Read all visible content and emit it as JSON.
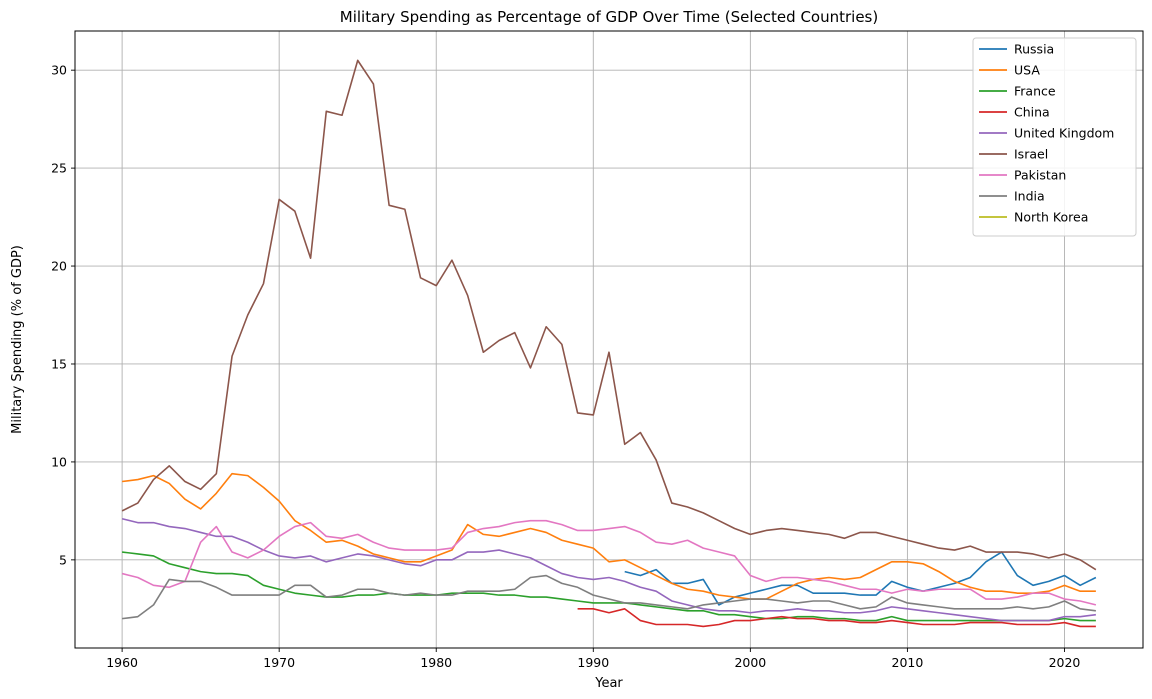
{
  "chart_data": {
    "type": "line",
    "title": "Military Spending as Percentage of GDP Over Time (Selected Countries)",
    "xlabel": "Year",
    "ylabel": "Military Spending (% of GDP)",
    "xlim": [
      1957,
      2025
    ],
    "ylim": [
      0.5,
      32
    ],
    "xticks": [
      1960,
      1970,
      1980,
      1990,
      2000,
      2010,
      2020
    ],
    "yticks": [
      5,
      10,
      15,
      20,
      25,
      30
    ],
    "grid": true,
    "legend_position": "top-right",
    "series": [
      {
        "name": "Russia",
        "color": "#1f77b4",
        "start_year": 1992,
        "values": [
          4.4,
          4.2,
          4.5,
          3.8,
          3.8,
          4.0,
          2.7,
          3.1,
          3.3,
          3.5,
          3.7,
          3.7,
          3.3,
          3.3,
          3.3,
          3.2,
          3.2,
          3.9,
          3.6,
          3.4,
          3.6,
          3.8,
          4.1,
          4.9,
          5.4,
          4.2,
          3.7,
          3.9,
          4.2,
          3.7,
          4.1
        ]
      },
      {
        "name": "USA",
        "color": "#ff7f0e",
        "start_year": 1960,
        "values": [
          9.0,
          9.1,
          9.3,
          8.9,
          8.1,
          7.6,
          8.4,
          9.4,
          9.3,
          8.7,
          8.0,
          7.0,
          6.5,
          5.9,
          6.0,
          5.7,
          5.3,
          5.1,
          4.9,
          4.9,
          5.2,
          5.5,
          6.8,
          6.3,
          6.2,
          6.4,
          6.6,
          6.4,
          6.0,
          5.8,
          5.6,
          4.9,
          5.0,
          4.6,
          4.2,
          3.8,
          3.5,
          3.4,
          3.2,
          3.1,
          3.0,
          3.0,
          3.4,
          3.8,
          4.0,
          4.1,
          4.0,
          4.1,
          4.5,
          4.9,
          4.9,
          4.8,
          4.4,
          3.9,
          3.6,
          3.4,
          3.4,
          3.3,
          3.3,
          3.4,
          3.7,
          3.4,
          3.4
        ]
      },
      {
        "name": "France",
        "color": "#2ca02c",
        "start_year": 1960,
        "values": [
          5.4,
          5.3,
          5.2,
          4.8,
          4.6,
          4.4,
          4.3,
          4.3,
          4.2,
          3.7,
          3.5,
          3.3,
          3.2,
          3.1,
          3.1,
          3.2,
          3.2,
          3.3,
          3.2,
          3.2,
          3.2,
          3.3,
          3.3,
          3.3,
          3.2,
          3.2,
          3.1,
          3.1,
          3.0,
          2.9,
          2.8,
          2.8,
          2.8,
          2.7,
          2.6,
          2.5,
          2.4,
          2.4,
          2.2,
          2.2,
          2.1,
          2.0,
          2.0,
          2.1,
          2.1,
          2.0,
          2.0,
          1.9,
          1.9,
          2.1,
          1.9,
          1.9,
          1.9,
          1.9,
          1.9,
          1.9,
          1.9,
          1.9,
          1.9,
          1.9,
          2.0,
          1.9,
          1.9
        ]
      },
      {
        "name": "China",
        "color": "#d62728",
        "start_year": 1989,
        "values": [
          2.5,
          2.5,
          2.3,
          2.5,
          1.9,
          1.7,
          1.7,
          1.7,
          1.6,
          1.7,
          1.9,
          1.9,
          2.0,
          2.1,
          2.0,
          2.0,
          1.9,
          1.9,
          1.8,
          1.8,
          1.9,
          1.8,
          1.7,
          1.7,
          1.7,
          1.8,
          1.8,
          1.8,
          1.7,
          1.7,
          1.7,
          1.8,
          1.6,
          1.6
        ]
      },
      {
        "name": "United Kingdom",
        "color": "#9467bd",
        "start_year": 1960,
        "values": [
          7.1,
          6.9,
          6.9,
          6.7,
          6.6,
          6.4,
          6.2,
          6.2,
          5.9,
          5.5,
          5.2,
          5.1,
          5.2,
          4.9,
          5.1,
          5.3,
          5.2,
          5.0,
          4.8,
          4.7,
          5.0,
          5.0,
          5.4,
          5.4,
          5.5,
          5.3,
          5.1,
          4.7,
          4.3,
          4.1,
          4.0,
          4.1,
          3.9,
          3.6,
          3.4,
          2.9,
          2.7,
          2.5,
          2.4,
          2.4,
          2.3,
          2.4,
          2.4,
          2.5,
          2.4,
          2.4,
          2.3,
          2.3,
          2.4,
          2.6,
          2.5,
          2.4,
          2.3,
          2.2,
          2.1,
          2.0,
          1.9,
          1.9,
          1.9,
          1.9,
          2.1,
          2.1,
          2.2
        ]
      },
      {
        "name": "Israel",
        "color": "#8c564b",
        "start_year": 1960,
        "values": [
          7.5,
          7.9,
          9.1,
          9.8,
          9.0,
          8.6,
          9.4,
          15.4,
          17.5,
          19.1,
          23.4,
          22.8,
          20.4,
          27.9,
          27.7,
          30.5,
          29.3,
          23.1,
          22.9,
          19.4,
          19.0,
          20.3,
          18.5,
          15.6,
          16.2,
          16.6,
          14.8,
          16.9,
          16.0,
          12.5,
          12.4,
          15.6,
          10.9,
          11.5,
          10.1,
          7.9,
          7.7,
          7.4,
          7.0,
          6.6,
          6.3,
          6.5,
          6.6,
          6.5,
          6.4,
          6.3,
          6.1,
          6.4,
          6.4,
          6.2,
          6.0,
          5.8,
          5.6,
          5.5,
          5.7,
          5.4,
          5.4,
          5.4,
          5.3,
          5.1,
          5.3,
          5.0,
          4.5
        ]
      },
      {
        "name": "Pakistan",
        "color": "#e377c2",
        "start_year": 1960,
        "values": [
          4.3,
          4.1,
          3.7,
          3.6,
          3.9,
          5.9,
          6.7,
          5.4,
          5.1,
          5.5,
          6.2,
          6.7,
          6.9,
          6.2,
          6.1,
          6.3,
          5.9,
          5.6,
          5.5,
          5.5,
          5.5,
          5.6,
          6.4,
          6.6,
          6.7,
          6.9,
          7.0,
          7.0,
          6.8,
          6.5,
          6.5,
          6.6,
          6.7,
          6.4,
          5.9,
          5.8,
          6.0,
          5.6,
          5.4,
          5.2,
          4.2,
          3.9,
          4.1,
          4.1,
          4.0,
          3.9,
          3.7,
          3.5,
          3.5,
          3.3,
          3.5,
          3.4,
          3.5,
          3.5,
          3.5,
          3.0,
          3.0,
          3.1,
          3.3,
          3.3,
          3.0,
          2.9,
          2.7
        ]
      },
      {
        "name": "India",
        "color": "#7f7f7f",
        "start_year": 1960,
        "values": [
          2.0,
          2.1,
          2.7,
          4.0,
          3.9,
          3.9,
          3.6,
          3.2,
          3.2,
          3.2,
          3.2,
          3.7,
          3.7,
          3.1,
          3.2,
          3.5,
          3.5,
          3.3,
          3.2,
          3.3,
          3.2,
          3.2,
          3.4,
          3.4,
          3.4,
          3.5,
          4.1,
          4.2,
          3.8,
          3.6,
          3.2,
          3.0,
          2.8,
          2.8,
          2.7,
          2.6,
          2.5,
          2.7,
          2.8,
          2.9,
          3.0,
          3.0,
          2.9,
          2.8,
          2.9,
          2.9,
          2.7,
          2.5,
          2.6,
          3.1,
          2.8,
          2.7,
          2.6,
          2.5,
          2.5,
          2.5,
          2.5,
          2.6,
          2.5,
          2.6,
          2.9,
          2.5,
          2.4
        ]
      },
      {
        "name": "North Korea",
        "color": "#bcbd22",
        "start_year": 1960,
        "values": []
      }
    ]
  }
}
